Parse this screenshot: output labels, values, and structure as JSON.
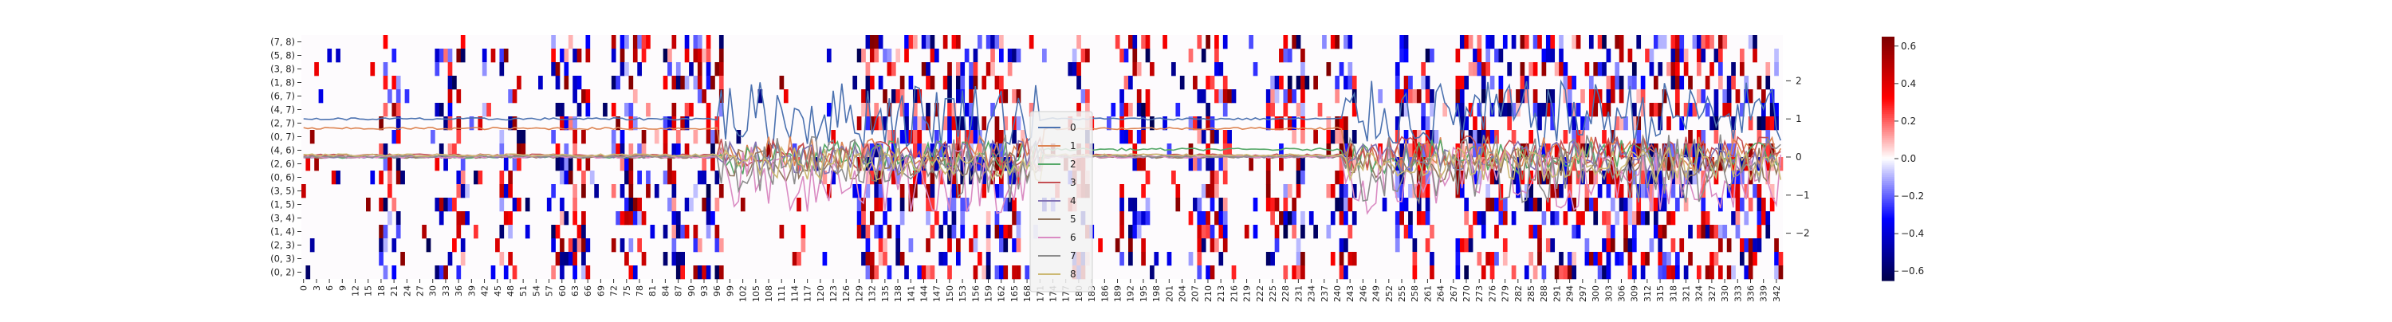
{
  "chart_data": {
    "type": "heatmap",
    "title": "",
    "heatmap": {
      "row_labels": [
        "(7, 8)",
        "(5, 8)",
        "(3, 8)",
        "(1, 8)",
        "(6, 7)",
        "(4, 7)",
        "(2, 7)",
        "(0, 7)",
        "(4, 6)",
        "(2, 6)",
        "(0, 6)",
        "(3, 5)",
        "(1, 5)",
        "(3, 4)",
        "(1, 4)",
        "(2, 3)",
        "(0, 3)",
        "(0, 2)"
      ],
      "col_count": 344,
      "x_tick_step": 3,
      "x_tick_labels": [
        "0",
        "3",
        "6",
        "9",
        "12",
        "15",
        "18",
        "21",
        "24",
        "27",
        "30",
        "33",
        "36",
        "39",
        "42",
        "45",
        "48",
        "51",
        "54",
        "57",
        "60",
        "63",
        "66",
        "69",
        "72",
        "75",
        "78",
        "81",
        "84",
        "87",
        "90",
        "93",
        "96",
        "99",
        "102",
        "105",
        "108",
        "111",
        "114",
        "117",
        "120",
        "123",
        "126",
        "129",
        "132",
        "135",
        "138",
        "141",
        "144",
        "147",
        "150",
        "153",
        "156",
        "159",
        "162",
        "165",
        "168",
        "171",
        "174",
        "177",
        "180",
        "183",
        "186",
        "189",
        "192",
        "195",
        "198",
        "201",
        "204",
        "207",
        "210",
        "213",
        "216",
        "219",
        "222",
        "225",
        "228",
        "231",
        "234",
        "237",
        "240",
        "243",
        "246",
        "249",
        "252",
        "255",
        "258",
        "261",
        "264",
        "267",
        "270",
        "273",
        "276",
        "279",
        "282",
        "285",
        "288",
        "291",
        "294",
        "297",
        "300",
        "303",
        "306",
        "309",
        "312",
        "315",
        "318",
        "321",
        "324",
        "327",
        "330",
        "333",
        "336",
        "339",
        "342"
      ],
      "value_range": [
        -0.65,
        0.65
      ],
      "colorbar_ticks": [
        "0.6",
        "0.4",
        "0.2",
        "0.0",
        "−0.2",
        "−0.4",
        "−0.6"
      ],
      "colorbar_values": [
        0.6,
        0.4,
        0.2,
        0.0,
        -0.2,
        -0.4,
        -0.6
      ],
      "colormap": "seismic",
      "dense_column_groups": [
        [
          18,
          22
        ],
        [
          31,
          37
        ],
        [
          46,
          50
        ],
        [
          58,
          66
        ],
        [
          72,
          80
        ],
        [
          84,
          97
        ],
        [
          129,
          166
        ],
        [
          178,
          182
        ],
        [
          190,
          196
        ],
        [
          206,
          214
        ],
        [
          224,
          232
        ],
        [
          238,
          244
        ],
        [
          254,
          262
        ],
        [
          268,
          342
        ]
      ]
    },
    "line_overlay": {
      "y_axis_side": "right",
      "ylim": [
        -3.2,
        3.2
      ],
      "y_ticks": [
        -2,
        -1,
        0,
        1,
        2
      ],
      "y_tick_labels": [
        "−2",
        "−1",
        "0",
        "1",
        "2"
      ],
      "x_count": 344,
      "series": [
        {
          "name": "0",
          "color": "#4c72b0"
        },
        {
          "name": "1",
          "color": "#dd8452"
        },
        {
          "name": "2",
          "color": "#55a868"
        },
        {
          "name": "3",
          "color": "#c44e52"
        },
        {
          "name": "4",
          "color": "#8172b3"
        },
        {
          "name": "5",
          "color": "#937860"
        },
        {
          "name": "6",
          "color": "#da8bc3"
        },
        {
          "name": "7",
          "color": "#8c8c8c"
        },
        {
          "name": "8",
          "color": "#ccb974"
        }
      ],
      "segments": [
        {
          "start": 0,
          "end": 96,
          "levels": [
            1.0,
            0.75,
            0.0,
            0.05,
            0.0,
            0.0,
            0.0,
            0.02,
            0.05
          ]
        },
        {
          "start": 97,
          "end": 171,
          "levels": [
            1.1,
            0.1,
            0.0,
            0.1,
            0.0,
            -0.2,
            -0.6,
            -0.3,
            -0.2
          ]
        },
        {
          "start": 172,
          "end": 241,
          "levels": [
            1.0,
            0.75,
            0.2,
            0.05,
            0.0,
            0.0,
            0.0,
            0.02,
            0.05
          ]
        },
        {
          "start": 242,
          "end": 343,
          "levels": [
            1.1,
            0.1,
            0.0,
            0.1,
            0.0,
            -0.2,
            -0.6,
            -0.3,
            -0.2
          ]
        }
      ],
      "legend": {
        "position": "center",
        "entries": [
          "0",
          "1",
          "2",
          "3",
          "4",
          "5",
          "6",
          "7",
          "8"
        ]
      }
    }
  }
}
